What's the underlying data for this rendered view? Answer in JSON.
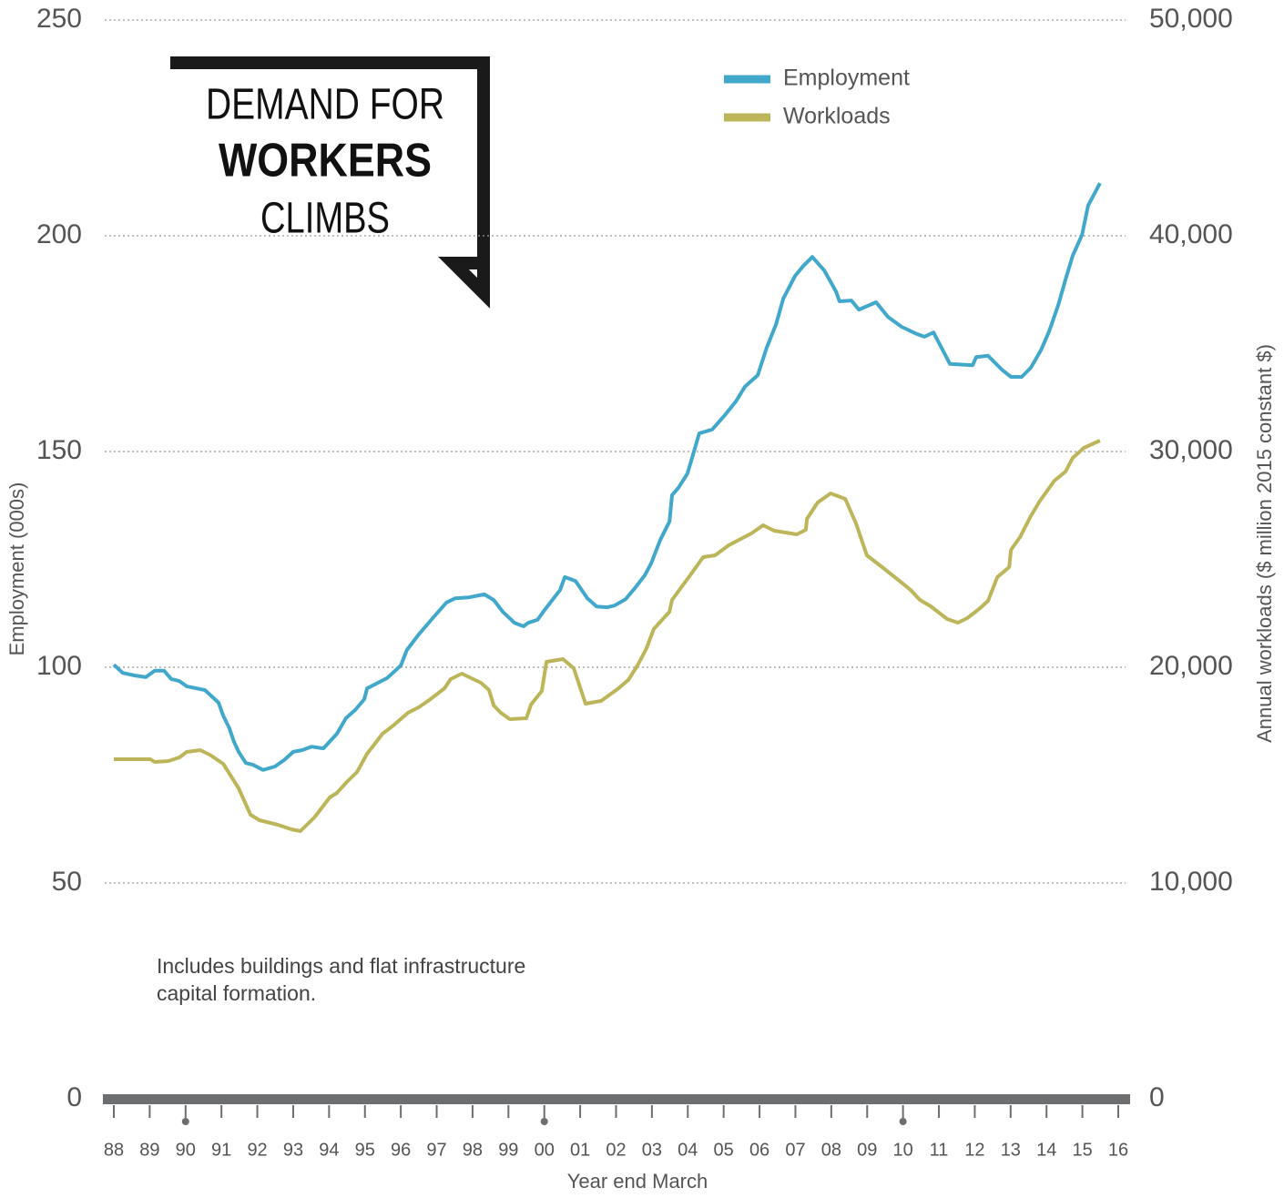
{
  "chart_data": {
    "type": "line",
    "title_lines": [
      "DEMAND FOR",
      "WORKERS",
      "CLIMBS"
    ],
    "annotation_lines": [
      "Includes buildings and flat infrastructure",
      "capital formation."
    ],
    "ylabel": "Employment (000s)",
    "y2label": "Annual workloads ($ million 2015 constant $)",
    "xlabel": "Year end March",
    "xlim": [
      1988,
      2016
    ],
    "xticks": [
      {
        "value": 1988,
        "label": "88"
      },
      {
        "value": 1989,
        "label": "89"
      },
      {
        "value": 1990,
        "label": "90"
      },
      {
        "value": 1991,
        "label": "91"
      },
      {
        "value": 1992,
        "label": "92"
      },
      {
        "value": 1993,
        "label": "93"
      },
      {
        "value": 1994,
        "label": "94"
      },
      {
        "value": 1995,
        "label": "95"
      },
      {
        "value": 1996,
        "label": "96"
      },
      {
        "value": 1997,
        "label": "97"
      },
      {
        "value": 1998,
        "label": "98"
      },
      {
        "value": 1999,
        "label": "99"
      },
      {
        "value": 2000,
        "label": "00"
      },
      {
        "value": 2001,
        "label": "01"
      },
      {
        "value": 2002,
        "label": "02"
      },
      {
        "value": 2003,
        "label": "03"
      },
      {
        "value": 2004,
        "label": "04"
      },
      {
        "value": 2005,
        "label": "05"
      },
      {
        "value": 2006,
        "label": "06"
      },
      {
        "value": 2007,
        "label": "07"
      },
      {
        "value": 2008,
        "label": "08"
      },
      {
        "value": 2009,
        "label": "09"
      },
      {
        "value": 2010,
        "label": "10"
      },
      {
        "value": 2011,
        "label": "11"
      },
      {
        "value": 2012,
        "label": "12"
      },
      {
        "value": 2013,
        "label": "13"
      },
      {
        "value": 2014,
        "label": "14"
      },
      {
        "value": 2015,
        "label": "15"
      },
      {
        "value": 2016,
        "label": "16"
      }
    ],
    "ylim": [
      0,
      250
    ],
    "yticks": [
      0,
      50,
      100,
      150,
      200,
      250
    ],
    "y2lim": [
      0,
      50000
    ],
    "y2ticks": [
      0,
      {
        "value": 10000,
        "label": "10,000"
      },
      {
        "value": 20000,
        "label": "20,000"
      },
      {
        "value": 30000,
        "label": "30,000"
      },
      {
        "value": 40000,
        "label": "40,000"
      },
      {
        "value": 50000,
        "label": "50,000"
      }
    ],
    "grid": true,
    "series": [
      {
        "name": "Employment",
        "color": "#41a8cc",
        "axis": "y",
        "x": [
          1988.0,
          1988.25,
          1988.58,
          1988.89,
          1989.14,
          1989.4,
          1989.6,
          1989.83,
          1990.03,
          1990.54,
          1990.92,
          1991.05,
          1991.22,
          1991.35,
          1991.48,
          1991.68,
          1991.88,
          1992.16,
          1992.49,
          1992.75,
          1993.0,
          1993.25,
          1993.51,
          1993.84,
          1994.22,
          1994.47,
          1994.73,
          1994.98,
          1995.06,
          1995.36,
          1995.62,
          1996.0,
          1996.17,
          1996.5,
          1996.89,
          1997.27,
          1997.52,
          1997.9,
          1998.33,
          1998.59,
          1998.84,
          1999.17,
          1999.42,
          1999.55,
          1999.81,
          2000.01,
          2000.44,
          2000.57,
          2000.87,
          2001.2,
          2001.46,
          2001.76,
          2001.96,
          2002.27,
          2002.55,
          2002.8,
          2002.98,
          2003.23,
          2003.49,
          2003.56,
          2003.74,
          2003.99,
          2004.32,
          2004.68,
          2005.01,
          2005.34,
          2005.59,
          2005.95,
          2006.2,
          2006.46,
          2006.66,
          2006.99,
          2007.22,
          2007.47,
          2007.8,
          2008.13,
          2008.23,
          2008.56,
          2008.77,
          2009.25,
          2009.58,
          2009.96,
          2010.34,
          2010.59,
          2010.85,
          2011.31,
          2011.94,
          2012.04,
          2012.37,
          2012.75,
          2013.01,
          2013.31,
          2013.56,
          2013.84,
          2014.07,
          2014.33,
          2014.53,
          2014.73,
          2014.99,
          2015.16,
          2015.49
        ],
        "values": [
          100.6,
          98.7,
          98.1,
          97.7,
          99.2,
          99.2,
          97.3,
          96.8,
          95.6,
          94.7,
          91.8,
          88.8,
          85.9,
          82.7,
          80.4,
          77.8,
          77.4,
          76.2,
          77.0,
          78.5,
          80.4,
          80.8,
          81.6,
          81.2,
          84.6,
          88.2,
          90.1,
          92.6,
          95.1,
          96.4,
          97.5,
          100.4,
          104.0,
          107.6,
          111.4,
          115.0,
          116.0,
          116.2,
          116.9,
          115.6,
          112.9,
          110.3,
          109.5,
          110.3,
          111.0,
          113.3,
          117.9,
          120.9,
          120.0,
          116.0,
          114.1,
          113.9,
          114.3,
          115.8,
          118.6,
          121.3,
          124.1,
          129.5,
          133.8,
          139.9,
          141.6,
          144.9,
          154.2,
          155.1,
          158.2,
          161.6,
          165.0,
          167.7,
          174.1,
          179.5,
          185.4,
          190.7,
          193.0,
          195.1,
          192.0,
          187.1,
          184.8,
          185.0,
          182.9,
          184.6,
          181.2,
          178.9,
          177.4,
          176.6,
          177.6,
          170.3,
          170.0,
          171.9,
          172.2,
          169.0,
          167.3,
          167.3,
          169.4,
          173.4,
          177.8,
          184.0,
          189.9,
          195.4,
          200.2,
          207.0,
          212.2
        ]
      },
      {
        "name": "Workloads",
        "color": "#bdb55a",
        "axis": "y2",
        "x": [
          1988.0,
          1989.02,
          1989.14,
          1989.52,
          1989.83,
          1990.03,
          1990.41,
          1990.67,
          1991.05,
          1991.48,
          1991.81,
          1992.06,
          1992.57,
          1992.95,
          1993.2,
          1993.59,
          1994.02,
          1994.22,
          1994.47,
          1994.78,
          1995.06,
          1995.49,
          1995.79,
          1996.2,
          1996.5,
          1996.83,
          1997.22,
          1997.39,
          1997.7,
          1998.23,
          1998.46,
          1998.59,
          1998.79,
          1999.04,
          1999.5,
          1999.63,
          1999.93,
          2000.06,
          2000.52,
          2000.82,
          2001.15,
          2001.58,
          2002.04,
          2002.34,
          2002.6,
          2002.85,
          2003.05,
          2003.49,
          2003.56,
          2003.99,
          2004.43,
          2004.76,
          2005.14,
          2005.77,
          2006.1,
          2006.41,
          2007.04,
          2007.29,
          2007.32,
          2007.62,
          2007.98,
          2008.39,
          2008.69,
          2008.99,
          2009.45,
          2009.96,
          2010.21,
          2010.47,
          2010.77,
          2011.23,
          2011.53,
          2011.79,
          2012.12,
          2012.37,
          2012.63,
          2012.96,
          2013.01,
          2013.26,
          2013.56,
          2013.82,
          2014.22,
          2014.53,
          2014.73,
          2015.04,
          2015.49
        ],
        "values": [
          15738,
          15738,
          15612,
          15654,
          15823,
          16076,
          16160,
          15949,
          15527,
          14388,
          13165,
          12911,
          12700,
          12489,
          12405,
          13038,
          13966,
          14177,
          14641,
          15148,
          15992,
          16920,
          17300,
          17890,
          18143,
          18523,
          19030,
          19451,
          19705,
          19283,
          18945,
          18228,
          17890,
          17595,
          17637,
          18270,
          18903,
          20253,
          20380,
          19958,
          18312,
          18439,
          18987,
          19409,
          20084,
          20886,
          21772,
          22574,
          23122,
          24093,
          25105,
          25190,
          25654,
          26203,
          26582,
          26329,
          26160,
          26371,
          26878,
          27637,
          28059,
          27806,
          26667,
          25190,
          24599,
          23924,
          23586,
          23122,
          22827,
          22236,
          22068,
          22278,
          22700,
          23080,
          24177,
          24641,
          25443,
          26034,
          27004,
          27722,
          28650,
          29072,
          29705,
          30169,
          30506
        ]
      }
    ]
  }
}
